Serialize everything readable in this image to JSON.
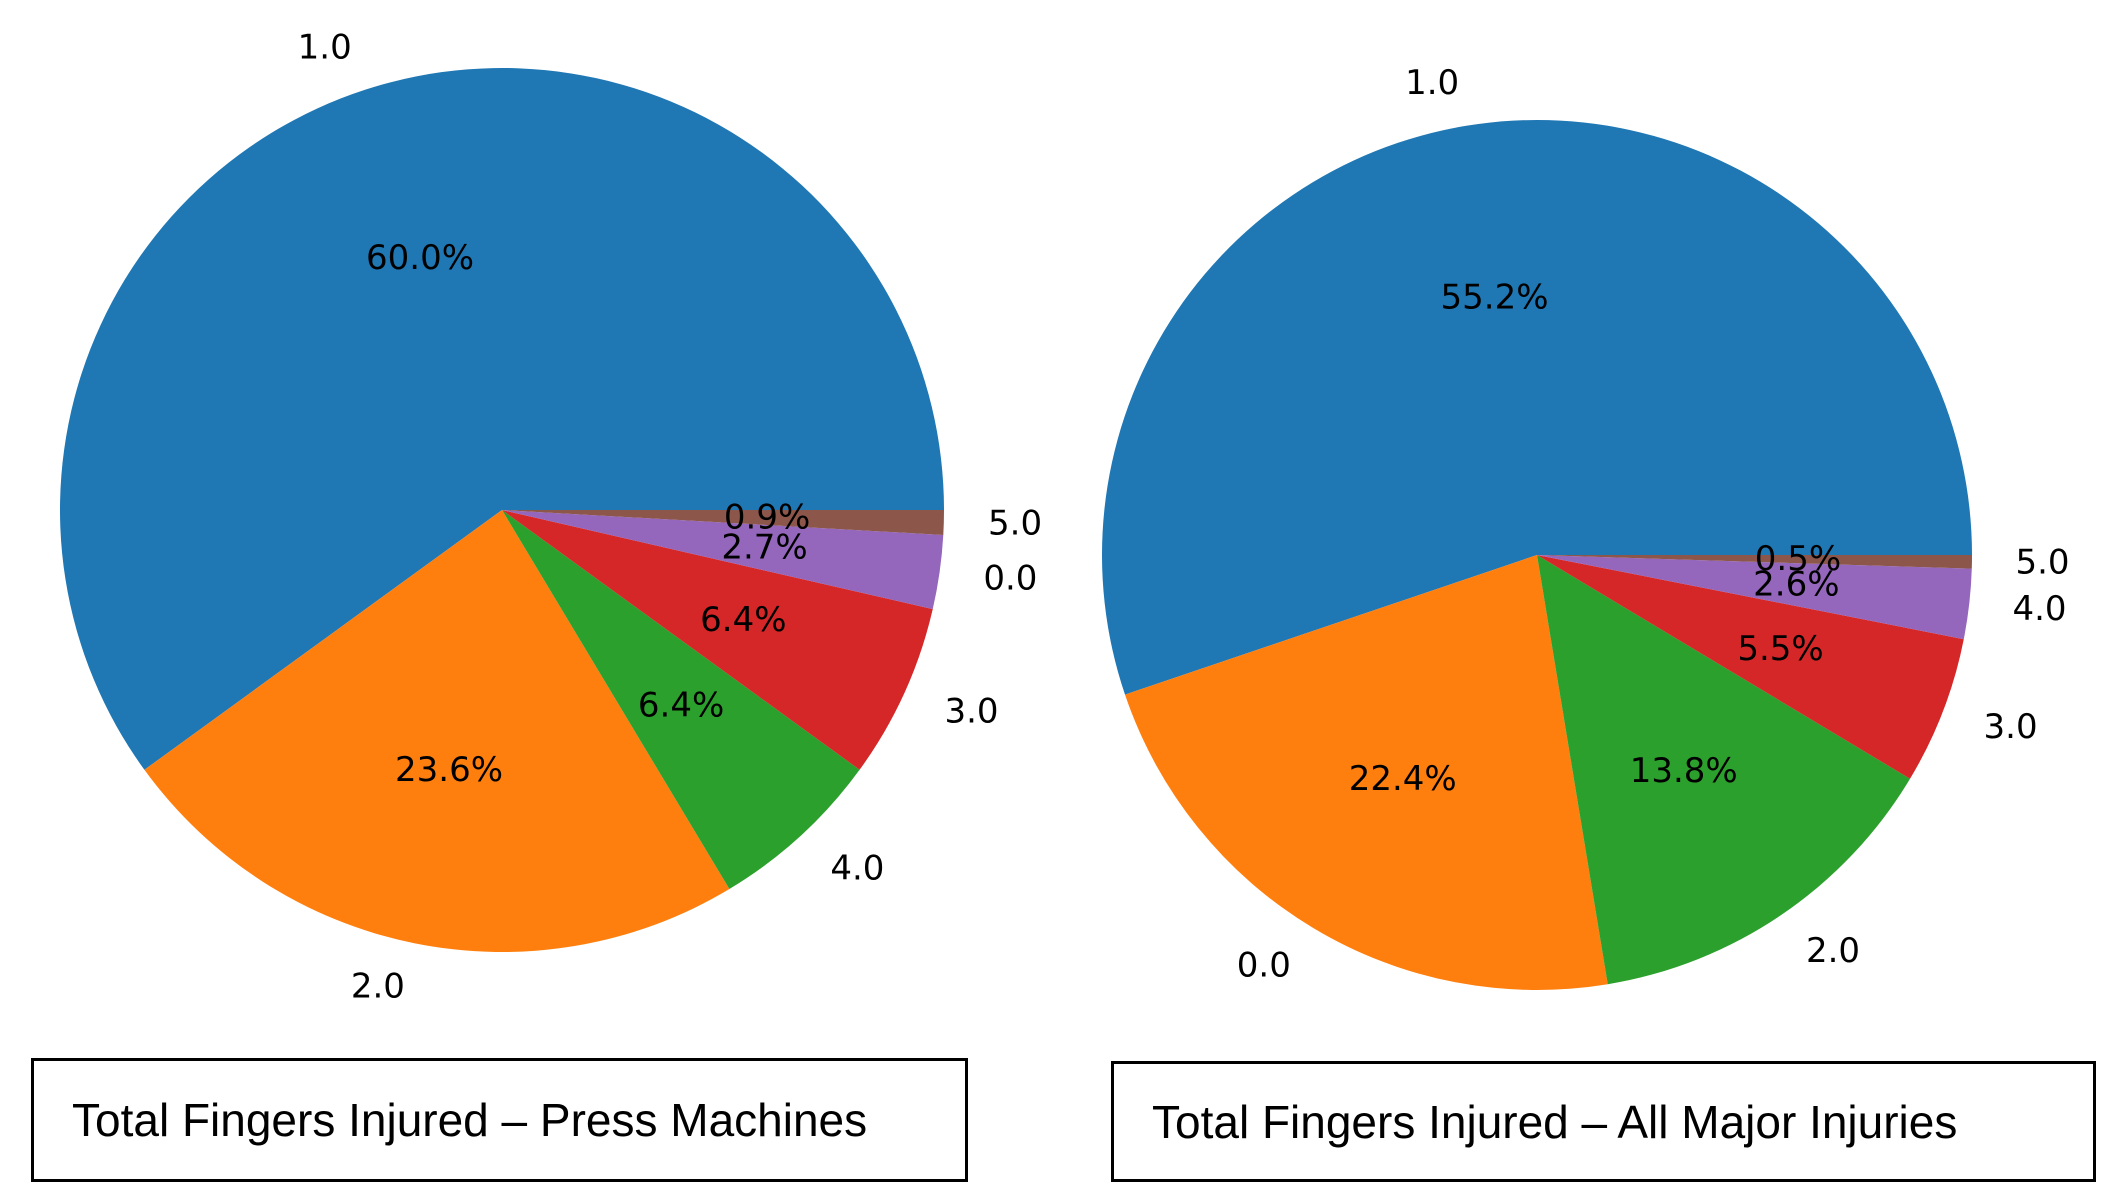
{
  "chart_data": [
    {
      "type": "pie",
      "title": "",
      "caption": "Total Fingers Injured – Press Machines",
      "slices": [
        {
          "label": "1.0",
          "value": 60.0,
          "pct_text": "60.0%",
          "color": "#1f77b4"
        },
        {
          "label": "2.0",
          "value": 23.6,
          "pct_text": "23.6%",
          "color": "#ff7f0e"
        },
        {
          "label": "4.0",
          "value": 6.4,
          "pct_text": "6.4%",
          "color": "#2ca02c"
        },
        {
          "label": "3.0",
          "value": 6.4,
          "pct_text": "6.4%",
          "color": "#d62728"
        },
        {
          "label": "0.0",
          "value": 2.7,
          "pct_text": "2.7%",
          "color": "#9467bd"
        },
        {
          "label": "5.0",
          "value": 0.9,
          "pct_text": "0.9%",
          "color": "#8c564b"
        }
      ]
    },
    {
      "type": "pie",
      "title": "",
      "caption": "Total Fingers Injured – All Major Injuries",
      "slices": [
        {
          "label": "1.0",
          "value": 55.2,
          "pct_text": "55.2%",
          "color": "#1f77b4"
        },
        {
          "label": "0.0",
          "value": 22.4,
          "pct_text": "22.4%",
          "color": "#ff7f0e"
        },
        {
          "label": "2.0",
          "value": 13.8,
          "pct_text": "13.8%",
          "color": "#2ca02c"
        },
        {
          "label": "3.0",
          "value": 5.5,
          "pct_text": "5.5%",
          "color": "#d62728"
        },
        {
          "label": "4.0",
          "value": 2.6,
          "pct_text": "2.6%",
          "color": "#9467bd"
        },
        {
          "label": "5.0",
          "value": 0.5,
          "pct_text": "0.5%",
          "color": "#8c564b"
        }
      ]
    }
  ]
}
